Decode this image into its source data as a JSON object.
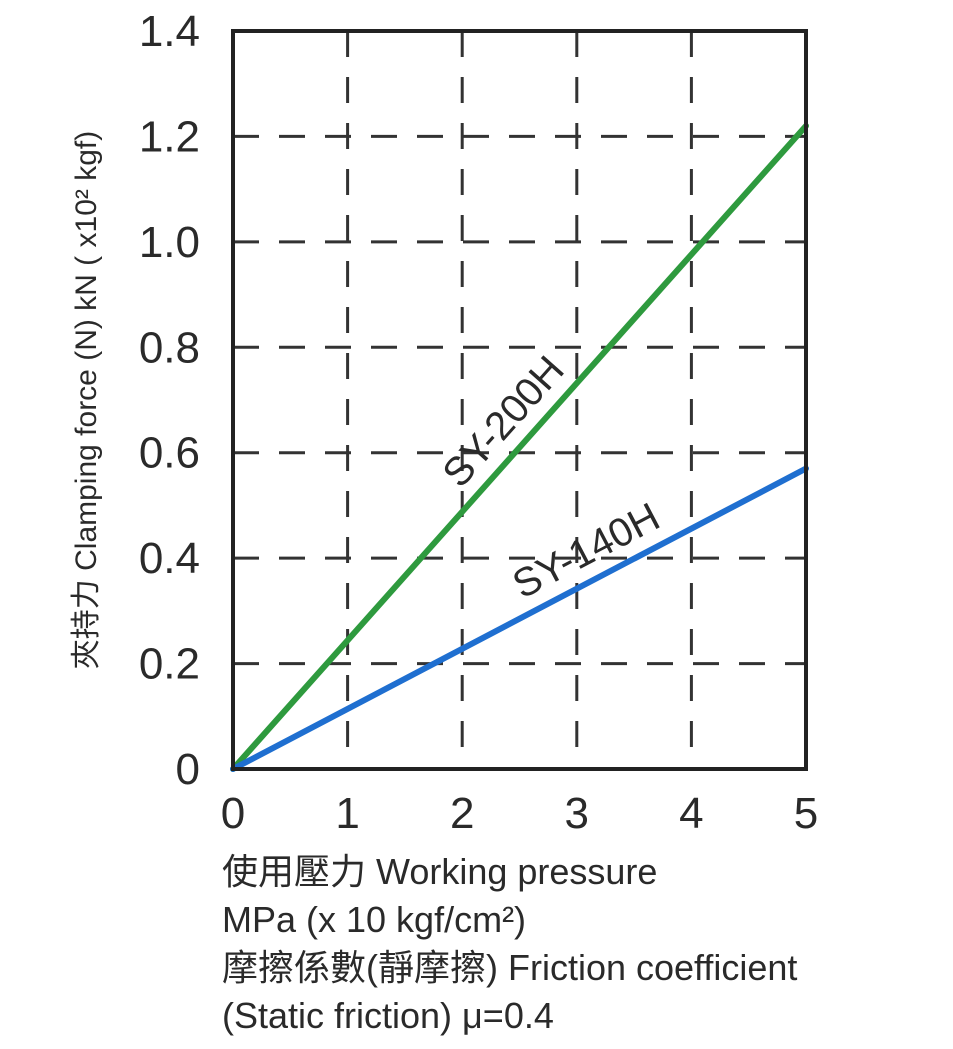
{
  "chart_data": {
    "type": "line",
    "x": [
      0,
      5
    ],
    "series": [
      {
        "name": "SY-200H",
        "values": [
          0,
          1.22
        ],
        "color": "#2e9a3e"
      },
      {
        "name": "SY-140H",
        "values": [
          0,
          0.57
        ],
        "color": "#1f6fd0"
      }
    ],
    "xlim": [
      0,
      5
    ],
    "ylim": [
      0,
      1.4
    ],
    "xticks": [
      "0",
      "1",
      "2",
      "3",
      "4",
      "5"
    ],
    "yticks": [
      "0",
      "0.2",
      "0.4",
      "0.6",
      "0.8",
      "1.0",
      "1.2",
      "1.4"
    ],
    "ylabel": "夾持力 Clamping force (N) kN ( x10² kgf)",
    "xlabel_lines": [
      "使用壓力 Working pressure",
      "MPa (x 10 kgf/cm²)",
      "摩擦係數(靜摩擦) Friction coefficient",
      "(Static friction) μ=0.4"
    ],
    "grid": true,
    "legend": "inline labels on lines"
  }
}
